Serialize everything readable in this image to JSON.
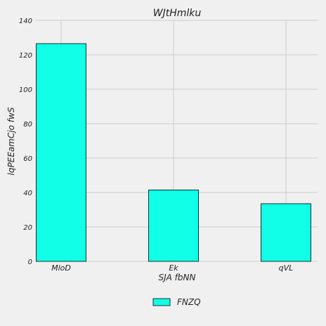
{
  "chart_data": {
    "type": "bar",
    "title": "WJtHmlku",
    "xlabel": "SJA  fbNN",
    "ylabel": "lqPEEamCjo fwS",
    "categories": [
      "MloD",
      "Ek",
      "qVL"
    ],
    "series": [
      {
        "name": "FNZQ",
        "values": [
          126.5,
          41.5,
          33.5
        ]
      }
    ],
    "ylim": [
      0,
      140
    ],
    "yticks": [
      0,
      20,
      40,
      60,
      80,
      100,
      120,
      140
    ],
    "grid": true,
    "legend_position": "bottom-center",
    "colors": {
      "bar": "#10ffe6",
      "bar_edge": "#000000",
      "grid": "#cbcbcb",
      "background": "#f0f0f0"
    }
  }
}
